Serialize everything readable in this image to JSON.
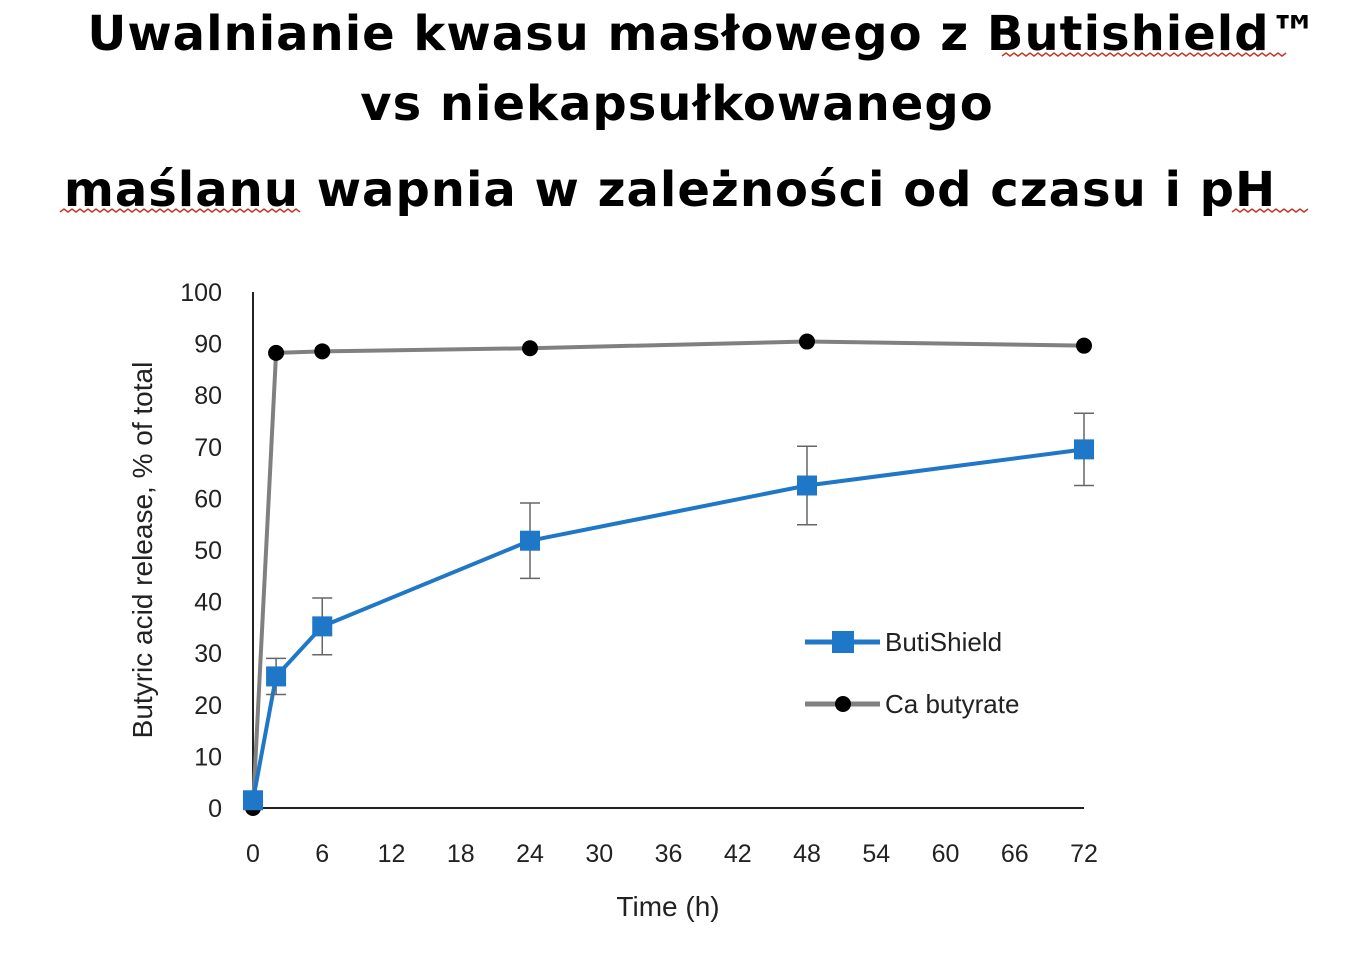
{
  "page": {
    "title_lines": [
      "Uwalnianie kwasu masłowego z Butishield™",
      "vs niekapsułkowanego",
      "maślanu wapnia w zależności od czasu i pH"
    ]
  },
  "chart_data": {
    "type": "line",
    "title": "Uwalnianie kwasu masłowego z Butishield™ vs niekapsułkowanego maślanu wapnia w zależności od czasu i pH",
    "xlabel": "Time (h)",
    "ylabel": "Butyric acid release, % of total",
    "xlim": [
      0,
      72
    ],
    "ylim": [
      0,
      100
    ],
    "xticks": [
      0,
      6,
      12,
      18,
      24,
      30,
      36,
      42,
      48,
      54,
      60,
      66,
      72
    ],
    "yticks": [
      0,
      10,
      20,
      30,
      40,
      50,
      60,
      70,
      80,
      90,
      100
    ],
    "grid": false,
    "legend_position": "center-right",
    "series": [
      {
        "name": "ButiShield",
        "color": "#1F77C8",
        "marker": "square",
        "points": [
          {
            "x": 0,
            "y": 1.5
          },
          {
            "x": 2,
            "y": 25.5,
            "err": 3.5
          },
          {
            "x": 6,
            "y": 35.2,
            "err": 5.5
          },
          {
            "x": 24,
            "y": 51.8,
            "err": 7.3
          },
          {
            "x": 48,
            "y": 62.5,
            "err": 7.6
          },
          {
            "x": 72,
            "y": 69.5,
            "err": 7.0
          }
        ]
      },
      {
        "name": "Ca butyrate",
        "color": "#808080",
        "marker": "circle",
        "points": [
          {
            "x": 0,
            "y": 0
          },
          {
            "x": 2,
            "y": 88.2
          },
          {
            "x": 6,
            "y": 88.5
          },
          {
            "x": 24,
            "y": 89.1
          },
          {
            "x": 48,
            "y": 90.4
          },
          {
            "x": 72,
            "y": 89.6
          }
        ]
      }
    ]
  }
}
